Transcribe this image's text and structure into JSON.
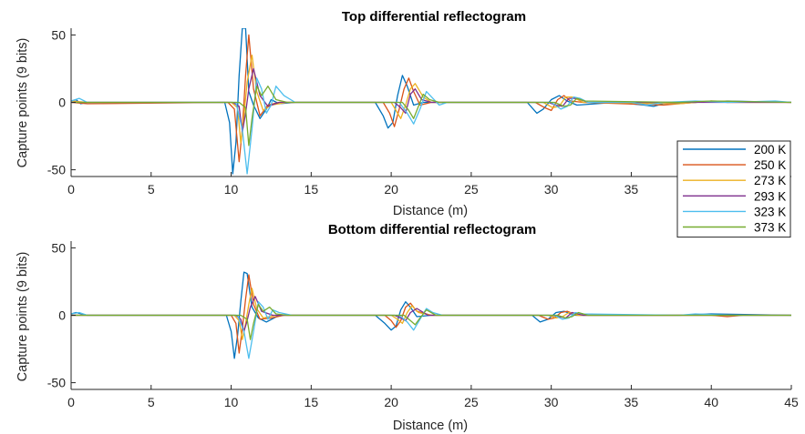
{
  "chart_data": [
    {
      "type": "line",
      "title": "Top differential reflectogram",
      "xlabel": "Distance (m)",
      "ylabel": "Capture points (9 bits)",
      "xlim": [
        0,
        45
      ],
      "ylim": [
        -55,
        55
      ],
      "xticks": [
        "0",
        "5",
        "10",
        "15",
        "20",
        "25",
        "30",
        "35",
        "40"
      ],
      "yticks": [
        "50",
        "0",
        "-50"
      ],
      "grid": false,
      "legend": "right",
      "series": [
        {
          "name": "200 K",
          "color": "#0072BD",
          "x": [
            0,
            0.3,
            0.6,
            1,
            9.6,
            9.9,
            10.1,
            10.3,
            10.5,
            10.7,
            10.9,
            11.1,
            11.4,
            11.8,
            12.2,
            12.5,
            13,
            14,
            19,
            19.5,
            19.8,
            20.1,
            20.4,
            20.7,
            21,
            21.4,
            22,
            28.5,
            29.1,
            29.5,
            30,
            30.5,
            31,
            31.6,
            34,
            35.8,
            36.4,
            37,
            39,
            41,
            45
          ],
          "y": [
            1,
            2,
            -1,
            0,
            0,
            -15,
            -53,
            -30,
            20,
            55,
            55,
            8,
            -2,
            -12,
            -5,
            2,
            -1,
            0,
            0,
            -10,
            -19,
            -15,
            5,
            20,
            12,
            -2,
            0,
            0,
            -8,
            -5,
            2,
            5,
            1,
            -2,
            0,
            -2,
            -3,
            -1,
            0,
            1,
            0
          ]
        },
        {
          "name": "250 K",
          "color": "#D95319",
          "x": [
            0,
            1,
            9.8,
            10.2,
            10.5,
            10.7,
            10.9,
            11.1,
            11.4,
            11.8,
            12.3,
            13,
            19.5,
            19.9,
            20.2,
            20.5,
            20.8,
            21.1,
            21.4,
            21.8,
            22.5,
            29,
            29.6,
            30,
            30.4,
            30.8,
            31.2,
            32,
            37,
            38,
            40,
            41,
            45
          ],
          "y": [
            0,
            -1,
            0,
            -5,
            -44,
            -20,
            20,
            50,
            10,
            -10,
            -2,
            0,
            0,
            -8,
            -18,
            -5,
            10,
            18,
            8,
            -2,
            0,
            0,
            -4,
            -6,
            2,
            5,
            1,
            0,
            -2,
            -1,
            1,
            0,
            0
          ]
        },
        {
          "name": "273 K",
          "color": "#EDB120",
          "x": [
            0,
            1,
            10,
            10.4,
            10.6,
            10.8,
            11,
            11.3,
            11.6,
            12,
            12.5,
            13.5,
            20,
            20.3,
            20.6,
            20.9,
            21.2,
            21.5,
            22,
            22.5,
            29.5,
            30.1,
            30.5,
            30.9,
            31.3,
            32,
            38,
            40,
            45
          ],
          "y": [
            1,
            0,
            0,
            -4,
            -30,
            -10,
            15,
            35,
            8,
            -6,
            -2,
            0,
            0,
            -6,
            -12,
            -2,
            10,
            14,
            4,
            0,
            0,
            -4,
            -3,
            4,
            4,
            0,
            -1,
            1,
            0
          ]
        },
        {
          "name": "293 K",
          "color": "#7E2F8E",
          "x": [
            0,
            1,
            10.1,
            10.5,
            10.7,
            10.9,
            11.1,
            11.4,
            11.8,
            12.3,
            13,
            20.2,
            20.6,
            20.9,
            21.2,
            21.5,
            21.9,
            22.5,
            29.8,
            30.3,
            30.7,
            31.1,
            31.6,
            32.3,
            45
          ],
          "y": [
            0,
            0,
            0,
            -3,
            -22,
            -8,
            10,
            25,
            5,
            -3,
            0,
            0,
            -4,
            -8,
            6,
            10,
            2,
            0,
            0,
            -2,
            -3,
            3,
            3,
            0,
            0
          ]
        },
        {
          "name": "323 K",
          "color": "#4DBEEE",
          "x": [
            0,
            0.5,
            1,
            10.3,
            10.7,
            11,
            11.3,
            11.6,
            11.9,
            12.2,
            12.5,
            12.8,
            13.3,
            14,
            20.5,
            21,
            21.4,
            21.8,
            22.2,
            22.6,
            23,
            23.5,
            30,
            30.6,
            31,
            31.4,
            31.8,
            32.3,
            35,
            36,
            37,
            39,
            41,
            44,
            45
          ],
          "y": [
            1,
            3,
            0,
            0,
            -20,
            -53,
            -20,
            18,
            10,
            -8,
            -2,
            12,
            5,
            0,
            0,
            -8,
            -16,
            -5,
            8,
            3,
            -2,
            0,
            0,
            -5,
            -3,
            4,
            3,
            0,
            0,
            -2,
            0,
            1,
            0,
            1,
            0
          ]
        },
        {
          "name": "373 K",
          "color": "#77AC30",
          "x": [
            0,
            1,
            10.5,
            10.9,
            11.1,
            11.3,
            11.6,
            11.9,
            12.3,
            12.8,
            13.5,
            20.7,
            21.1,
            21.4,
            21.7,
            22,
            22.4,
            23,
            30.2,
            30.8,
            31.2,
            31.6,
            32.1,
            38,
            40,
            45
          ],
          "y": [
            0,
            0,
            0,
            -4,
            -32,
            -12,
            12,
            5,
            12,
            2,
            0,
            0,
            -6,
            -12,
            -3,
            6,
            2,
            0,
            0,
            -3,
            -2,
            3,
            1,
            0,
            1,
            0
          ]
        }
      ]
    },
    {
      "type": "line",
      "title": "Bottom differential reflectogram",
      "xlabel": "Distance (m)",
      "ylabel": "Capture points (9 bits)",
      "xlim": [
        0,
        45
      ],
      "ylim": [
        -55,
        55
      ],
      "xticks": [
        "0",
        "5",
        "10",
        "15",
        "20",
        "25",
        "30",
        "35",
        "40",
        "45"
      ],
      "yticks": [
        "50",
        "0",
        "-50"
      ],
      "grid": false,
      "series": [
        {
          "name": "200 K",
          "color": "#0072BD",
          "x": [
            0,
            0.3,
            1,
            9.7,
            10,
            10.2,
            10.4,
            10.6,
            10.8,
            11,
            11.3,
            11.7,
            12.2,
            13,
            19,
            19.6,
            20,
            20.3,
            20.6,
            20.9,
            21.2,
            21.6,
            22.5,
            28.8,
            29.3,
            29.8,
            30.3,
            30.8,
            31.5,
            38,
            40,
            45
          ],
          "y": [
            1,
            2,
            0,
            0,
            -12,
            -32,
            -15,
            10,
            32,
            31,
            6,
            -2,
            -5,
            0,
            0,
            -6,
            -11,
            -8,
            4,
            10,
            6,
            -1,
            0,
            0,
            -5,
            -3,
            2,
            3,
            0,
            0,
            1,
            0
          ]
        },
        {
          "name": "250 K",
          "color": "#D95319",
          "x": [
            0,
            1,
            10,
            10.3,
            10.5,
            10.7,
            10.9,
            11.1,
            11.4,
            11.8,
            12.5,
            13.3,
            19.6,
            20,
            20.3,
            20.6,
            20.9,
            21.2,
            21.6,
            22.5,
            29.2,
            29.8,
            30.2,
            30.6,
            31,
            31.6,
            40,
            41,
            42,
            45
          ],
          "y": [
            0,
            0,
            0,
            -6,
            -28,
            -10,
            12,
            30,
            8,
            -3,
            -2,
            0,
            0,
            -4,
            -9,
            -4,
            6,
            9,
            3,
            0,
            0,
            -3,
            -2,
            2,
            3,
            0,
            0,
            -1,
            0,
            0
          ]
        },
        {
          "name": "273 K",
          "color": "#EDB120",
          "x": [
            0,
            1,
            10.2,
            10.5,
            10.7,
            10.9,
            11.1,
            11.3,
            11.6,
            12,
            12.8,
            20,
            20.4,
            20.7,
            21,
            21.3,
            21.7,
            22.5,
            29.8,
            30.3,
            30.7,
            31.1,
            31.7,
            45
          ],
          "y": [
            0,
            0,
            0,
            -4,
            -18,
            -6,
            8,
            20,
            5,
            -2,
            0,
            0,
            -3,
            -6,
            2,
            7,
            2,
            0,
            0,
            -2,
            -1,
            2,
            0,
            0
          ]
        },
        {
          "name": "293 K",
          "color": "#7E2F8E",
          "x": [
            0,
            10.3,
            10.6,
            10.8,
            11,
            11.2,
            11.5,
            11.9,
            12.6,
            20.2,
            20.6,
            20.9,
            21.2,
            21.6,
            22.3,
            30,
            30.5,
            30.9,
            31.3,
            32,
            45
          ],
          "y": [
            0,
            0,
            -3,
            -12,
            -4,
            6,
            14,
            3,
            0,
            0,
            -2,
            -4,
            2,
            5,
            0,
            0,
            -1,
            -2,
            2,
            0,
            0
          ]
        },
        {
          "name": "323 K",
          "color": "#4DBEEE",
          "x": [
            0,
            0.5,
            1,
            10.4,
            10.8,
            11.1,
            11.4,
            11.7,
            12,
            12.3,
            12.6,
            13,
            13.8,
            20.5,
            21,
            21.4,
            21.8,
            22.2,
            22.6,
            23.2,
            30.2,
            30.7,
            31.1,
            31.5,
            32,
            38,
            39,
            41,
            45
          ],
          "y": [
            1,
            2,
            0,
            0,
            -12,
            -32,
            -12,
            10,
            6,
            -3,
            4,
            2,
            0,
            0,
            -5,
            -11,
            -3,
            5,
            2,
            0,
            0,
            -3,
            -2,
            2,
            1,
            0,
            1,
            0,
            0
          ]
        },
        {
          "name": "373 K",
          "color": "#77AC30",
          "x": [
            0,
            1,
            10.6,
            11,
            11.2,
            11.4,
            11.7,
            12,
            12.4,
            12.8,
            13.5,
            20.8,
            21.2,
            21.5,
            21.8,
            22.2,
            22.8,
            30.4,
            30.9,
            31.3,
            31.7,
            32.3,
            45
          ],
          "y": [
            0,
            0,
            0,
            -3,
            -18,
            -6,
            8,
            3,
            6,
            1,
            0,
            0,
            -4,
            -7,
            -2,
            4,
            0,
            0,
            -2,
            -1,
            2,
            0,
            0
          ]
        }
      ]
    }
  ]
}
